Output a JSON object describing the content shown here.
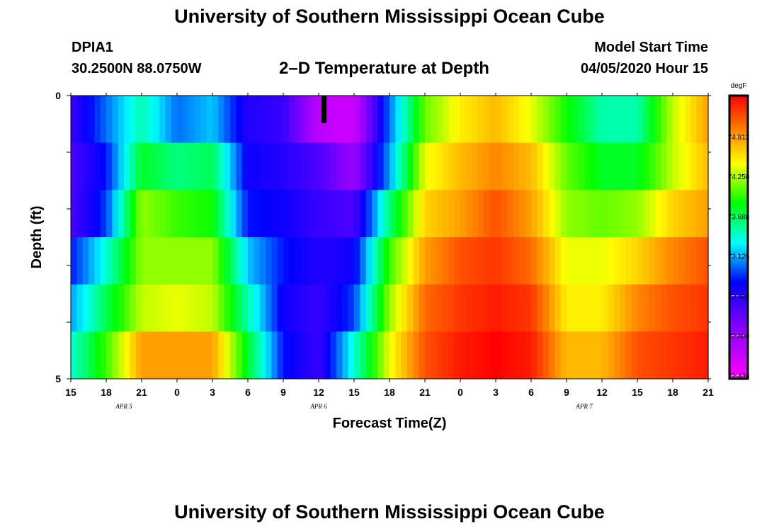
{
  "header": {
    "title": "University of Southern Mississippi Ocean Cube",
    "station_id": "DPIA1",
    "coords": "30.2500N 88.0750W",
    "chart_title": "2–D Temperature at Depth",
    "model_start_label": "Model Start Time",
    "model_start_value": "04/05/2020 Hour 15"
  },
  "footer": {
    "title": "University of Southern Mississippi Ocean Cube"
  },
  "chart_data": {
    "type": "heatmap",
    "title": "2–D Temperature at Depth",
    "xlabel": "Forecast Time(Z)",
    "ylabel": "Depth (ft)",
    "x_tick_labels": [
      "15",
      "18",
      "21",
      "0",
      "3",
      "6",
      "9",
      "12",
      "15",
      "18",
      "21",
      "0",
      "3",
      "6",
      "9",
      "12",
      "15",
      "18",
      "21"
    ],
    "day_labels": [
      {
        "label": "APR 5",
        "tick_index": 1.5
      },
      {
        "label": "APR 6",
        "tick_index": 7
      },
      {
        "label": "APR 7",
        "tick_index": 14.5
      }
    ],
    "y_tick_labels": [
      "0",
      "5"
    ],
    "ylim": [
      0,
      5
    ],
    "depths_ft": [
      0,
      1,
      2,
      3,
      4,
      5
    ],
    "hours_from_start": [
      0,
      3,
      6,
      9,
      12,
      15,
      18,
      21,
      24,
      27,
      30,
      33,
      36,
      39,
      42,
      45,
      48,
      51,
      54
    ],
    "colorbar": {
      "unit": "degF",
      "tick_labels": [
        "74.812",
        "74.250",
        "73.688",
        "73.125",
        "72.562",
        "72.000",
        "71.438"
      ],
      "vmin": 71.2,
      "vmax": 75.2
    },
    "values": [
      [
        72.3,
        72.8,
        73.3,
        72.8,
        73.0,
        72.4,
        72.3,
        71.6,
        71.5,
        72.8,
        73.9,
        74.3,
        74.5,
        74.2,
        73.7,
        73.3,
        73.3,
        74.1,
        74.6
      ],
      [
        72.2,
        72.6,
        73.6,
        73.4,
        73.5,
        72.5,
        72.4,
        72.2,
        71.8,
        72.9,
        74.2,
        74.5,
        74.7,
        74.5,
        73.9,
        73.6,
        73.6,
        74.1,
        74.5
      ],
      [
        72.2,
        72.7,
        74.0,
        73.8,
        73.7,
        72.6,
        72.5,
        72.3,
        72.2,
        73.4,
        74.4,
        74.6,
        74.9,
        74.6,
        74.0,
        73.9,
        74.0,
        74.4,
        74.6
      ],
      [
        72.6,
        73.2,
        74.0,
        74.0,
        74.0,
        73.0,
        72.6,
        72.4,
        72.5,
        73.8,
        74.6,
        74.9,
        75.0,
        74.8,
        74.2,
        74.2,
        74.4,
        74.7,
        74.9
      ],
      [
        72.9,
        73.5,
        74.1,
        74.2,
        74.1,
        73.3,
        72.5,
        72.3,
        72.7,
        74.0,
        74.8,
        75.0,
        75.1,
        75.0,
        74.3,
        74.3,
        74.7,
        74.9,
        75.0
      ],
      [
        73.2,
        73.8,
        74.6,
        74.6,
        74.6,
        73.6,
        72.6,
        72.3,
        73.2,
        74.2,
        74.9,
        75.1,
        75.2,
        75.1,
        74.5,
        74.5,
        74.9,
        75.0,
        75.1
      ]
    ]
  }
}
